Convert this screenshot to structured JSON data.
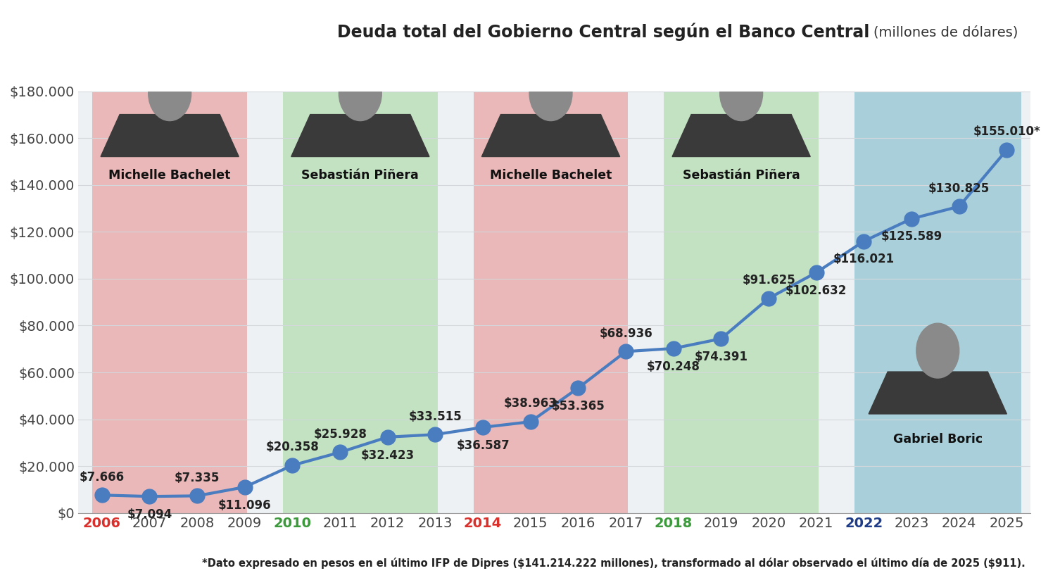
{
  "chart_data": {
    "type": "line",
    "title": "Deuda total del Gobierno Central según el Banco Central",
    "subtitle": "(millones de dólares)",
    "footnote": "*Dato expresado en pesos en el último IFP de Dipres ($141.214.222 millones), transformado al dólar observado el último día de 2025 ($911).",
    "categories": [
      "2006",
      "2007",
      "2008",
      "2009",
      "2010",
      "2011",
      "2012",
      "2013",
      "2014",
      "2015",
      "2016",
      "2017",
      "2018",
      "2019",
      "2020",
      "2021",
      "2022",
      "2023",
      "2024",
      "2025"
    ],
    "values": [
      7666,
      7094,
      7335,
      11096,
      20358,
      25928,
      32423,
      33515,
      36587,
      38963,
      53365,
      68936,
      70248,
      74391,
      91625,
      102632,
      116021,
      125589,
      130825,
      155010
    ],
    "value_labels": [
      "$7.666",
      "$7.094",
      "$7.335",
      "$11.096",
      "$20.358",
      "$25.928",
      "$32.423",
      "$33.515",
      "$36.587",
      "$38.963",
      "$53.365",
      "$68.936",
      "$70.248",
      "$74.391",
      "$91.625",
      "$102.632",
      "$116.021",
      "$125.589",
      "$130.825",
      "$155.010*"
    ],
    "data_labels": true,
    "color": "#4a7cc0",
    "marker": "circle",
    "grid": true,
    "ylim": [
      0,
      180000
    ],
    "yticks": [
      {
        "value": 0,
        "label": "$0"
      },
      {
        "value": 20000,
        "label": "$20.000"
      },
      {
        "value": 40000,
        "label": "$40.000"
      },
      {
        "value": 60000,
        "label": "$60.000"
      },
      {
        "value": 80000,
        "label": "$80.000"
      },
      {
        "value": 100000,
        "label": "$100.000"
      },
      {
        "value": 120000,
        "label": "$120.000"
      },
      {
        "value": 140000,
        "label": "$140.000"
      },
      {
        "value": 160000,
        "label": "$160.000"
      },
      {
        "value": 180000,
        "label": "$180.000"
      }
    ],
    "periods": [
      {
        "name": "Michelle Bachelet",
        "start": "2006",
        "end": "2009",
        "color": "#d9302c"
      },
      {
        "name": "Sebastián Piñera",
        "start": "2010",
        "end": "2013",
        "color": "#3c9a3c"
      },
      {
        "name": "Michelle Bachelet",
        "start": "2014",
        "end": "2017",
        "color": "#d9302c"
      },
      {
        "name": "Sebastián Piñera",
        "start": "2018",
        "end": "2021",
        "color": "#3c9a3c"
      },
      {
        "name": "Gabriel Boric",
        "start": "2022",
        "end": "2025",
        "color": "#1f3c88"
      }
    ]
  }
}
